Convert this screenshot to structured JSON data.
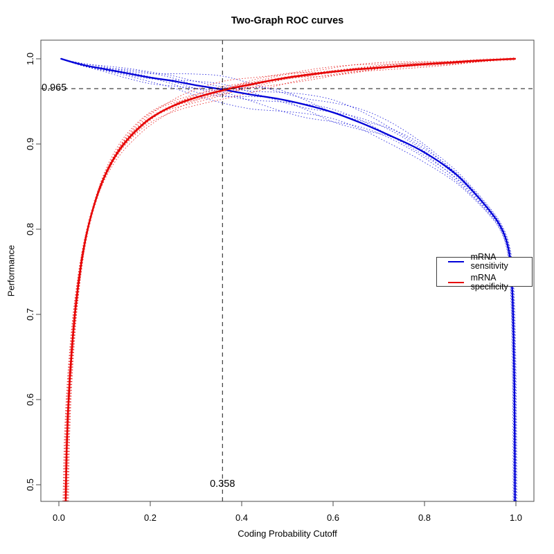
{
  "chart_data": {
    "type": "line",
    "title": "Two-Graph ROC curves",
    "xlabel": "Coding Probability Cutoff",
    "ylabel": "Performance",
    "grid": false,
    "legend_position": "right-middle",
    "xlim": [
      -0.0394,
      1.0394
    ],
    "ylim": [
      0.4805,
      1.0219
    ],
    "x_ticks": [
      0.0,
      0.2,
      0.4,
      0.6,
      0.8,
      1.0
    ],
    "x_tick_labels": [
      "0.0",
      "0.2",
      "0.4",
      "0.6",
      "0.8",
      "1.0"
    ],
    "y_ticks": [
      0.5,
      0.6,
      0.7,
      0.8,
      0.9,
      1.0
    ],
    "y_tick_labels": [
      "0.5",
      "0.6",
      "0.7",
      "0.8",
      "0.9",
      "1.0"
    ],
    "crosshair": {
      "x_value": 0.358,
      "x_label": "0.358",
      "y_value": 0.965,
      "y_label": "0.965",
      "style": "dashed",
      "color": "#111111"
    },
    "series": [
      {
        "name": "mRNA sensitivity",
        "color": "#0000d8",
        "line_width": 2.3,
        "beaded": false,
        "replicates": {
          "count": 8,
          "spread": 0.013,
          "u_exp": 1.15,
          "x_jitter": 0.004,
          "jitter_end": "tail",
          "style": "dotted"
        },
        "points": [
          [
            0.005,
            1.0
          ],
          [
            0.03,
            0.996
          ],
          [
            0.06,
            0.992
          ],
          [
            0.1,
            0.988
          ],
          [
            0.15,
            0.983
          ],
          [
            0.2,
            0.978
          ],
          [
            0.25,
            0.974
          ],
          [
            0.3,
            0.969
          ],
          [
            0.358,
            0.964
          ],
          [
            0.42,
            0.958
          ],
          [
            0.48,
            0.953
          ],
          [
            0.54,
            0.946
          ],
          [
            0.6,
            0.937
          ],
          [
            0.66,
            0.925
          ],
          [
            0.72,
            0.911
          ],
          [
            0.78,
            0.896
          ],
          [
            0.83,
            0.88
          ],
          [
            0.87,
            0.864
          ],
          [
            0.9,
            0.848
          ],
          [
            0.925,
            0.833
          ],
          [
            0.945,
            0.82
          ],
          [
            0.96,
            0.809
          ],
          [
            0.972,
            0.797
          ],
          [
            0.98,
            0.785
          ],
          [
            0.986,
            0.77
          ],
          [
            0.99,
            0.748
          ],
          [
            0.993,
            0.715
          ],
          [
            0.995,
            0.672
          ],
          [
            0.9965,
            0.62
          ],
          [
            0.9975,
            0.56
          ],
          [
            0.998,
            0.4805
          ]
        ]
      },
      {
        "name": "mRNA specificity",
        "color": "#e60000",
        "line_width": 2.6,
        "beaded": true,
        "replicates": {
          "count": 8,
          "spread": 0.0075,
          "u_exp": 0.5,
          "x_jitter": 0.006,
          "jitter_end": "head",
          "style": "dotted"
        },
        "points": [
          [
            0.015,
            0.4805
          ],
          [
            0.017,
            0.54
          ],
          [
            0.02,
            0.585
          ],
          [
            0.024,
            0.625
          ],
          [
            0.029,
            0.663
          ],
          [
            0.035,
            0.7
          ],
          [
            0.043,
            0.737
          ],
          [
            0.052,
            0.77
          ],
          [
            0.063,
            0.8
          ],
          [
            0.077,
            0.828
          ],
          [
            0.093,
            0.853
          ],
          [
            0.112,
            0.875
          ],
          [
            0.135,
            0.895
          ],
          [
            0.162,
            0.912
          ],
          [
            0.195,
            0.928
          ],
          [
            0.235,
            0.941
          ],
          [
            0.285,
            0.952
          ],
          [
            0.358,
            0.963
          ],
          [
            0.43,
            0.971
          ],
          [
            0.5,
            0.978
          ],
          [
            0.57,
            0.983
          ],
          [
            0.64,
            0.987
          ],
          [
            0.71,
            0.99
          ],
          [
            0.78,
            0.993
          ],
          [
            0.85,
            0.9955
          ],
          [
            0.92,
            0.998
          ],
          [
            0.998,
            1.0
          ]
        ]
      }
    ]
  }
}
